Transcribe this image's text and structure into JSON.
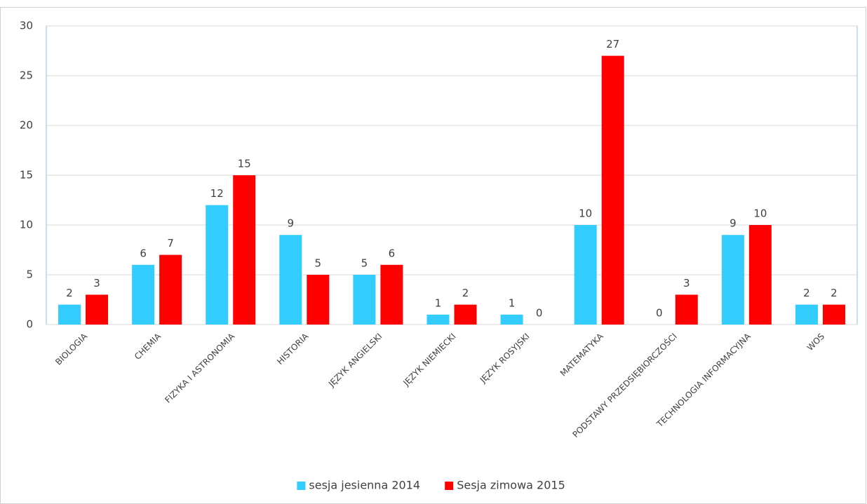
{
  "chart_data": {
    "type": "bar",
    "categories": [
      "BIOLOGIA",
      "CHEMIA",
      "FIZYKA I ASTRONOMIA",
      "HISTORIA",
      "JĘZYK ANGIELSKI",
      "JĘZYK NIEMIECKI",
      "JĘZYK ROSYJSKI",
      "MATEMATYKA",
      "PODSTAWY PRZEDSIĘBIORCZOŚCI",
      "TECHNOLOGIA INFORMACYJNA",
      "WOS"
    ],
    "series": [
      {
        "name": "sesja jesienna 2014",
        "color": "#33ccff",
        "values": [
          2,
          6,
          12,
          9,
          5,
          1,
          1,
          10,
          0,
          9,
          2
        ]
      },
      {
        "name": "Sesja zimowa 2015",
        "color": "#ff0000",
        "values": [
          3,
          7,
          15,
          5,
          6,
          2,
          0,
          27,
          3,
          10,
          2
        ]
      }
    ],
    "ylim": [
      0,
      30
    ],
    "yticks": [
      0,
      5,
      10,
      15,
      20,
      25,
      30
    ],
    "grid": true,
    "legend": "bottom"
  }
}
